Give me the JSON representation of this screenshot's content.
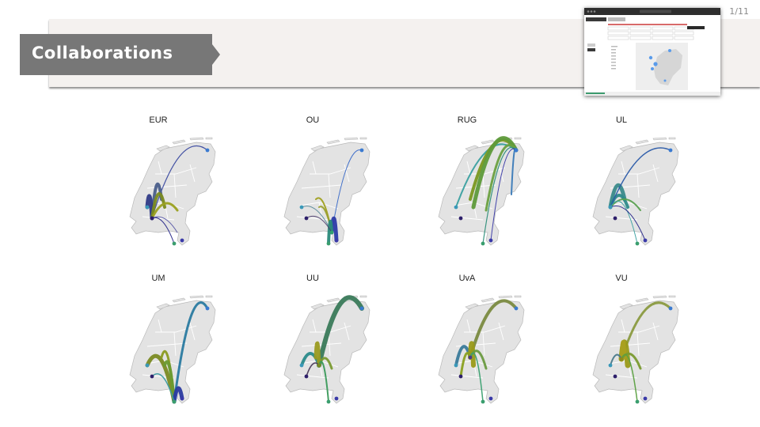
{
  "slide": {
    "page_number": "1/11",
    "title": "Collaborations"
  },
  "colors": {
    "header_band": "#f4f1ef",
    "title_tab": "#777777",
    "land": "#e3e3e3",
    "land_border": "#b9b9b9"
  },
  "thumbnail": {
    "icon": "app-screenshot-icon"
  },
  "maps": [
    {
      "label": "EUR"
    },
    {
      "label": "OU"
    },
    {
      "label": "RUG"
    },
    {
      "label": "UL"
    },
    {
      "label": "UM"
    },
    {
      "label": "UU"
    },
    {
      "label": "UvA"
    },
    {
      "label": "VU"
    }
  ]
}
